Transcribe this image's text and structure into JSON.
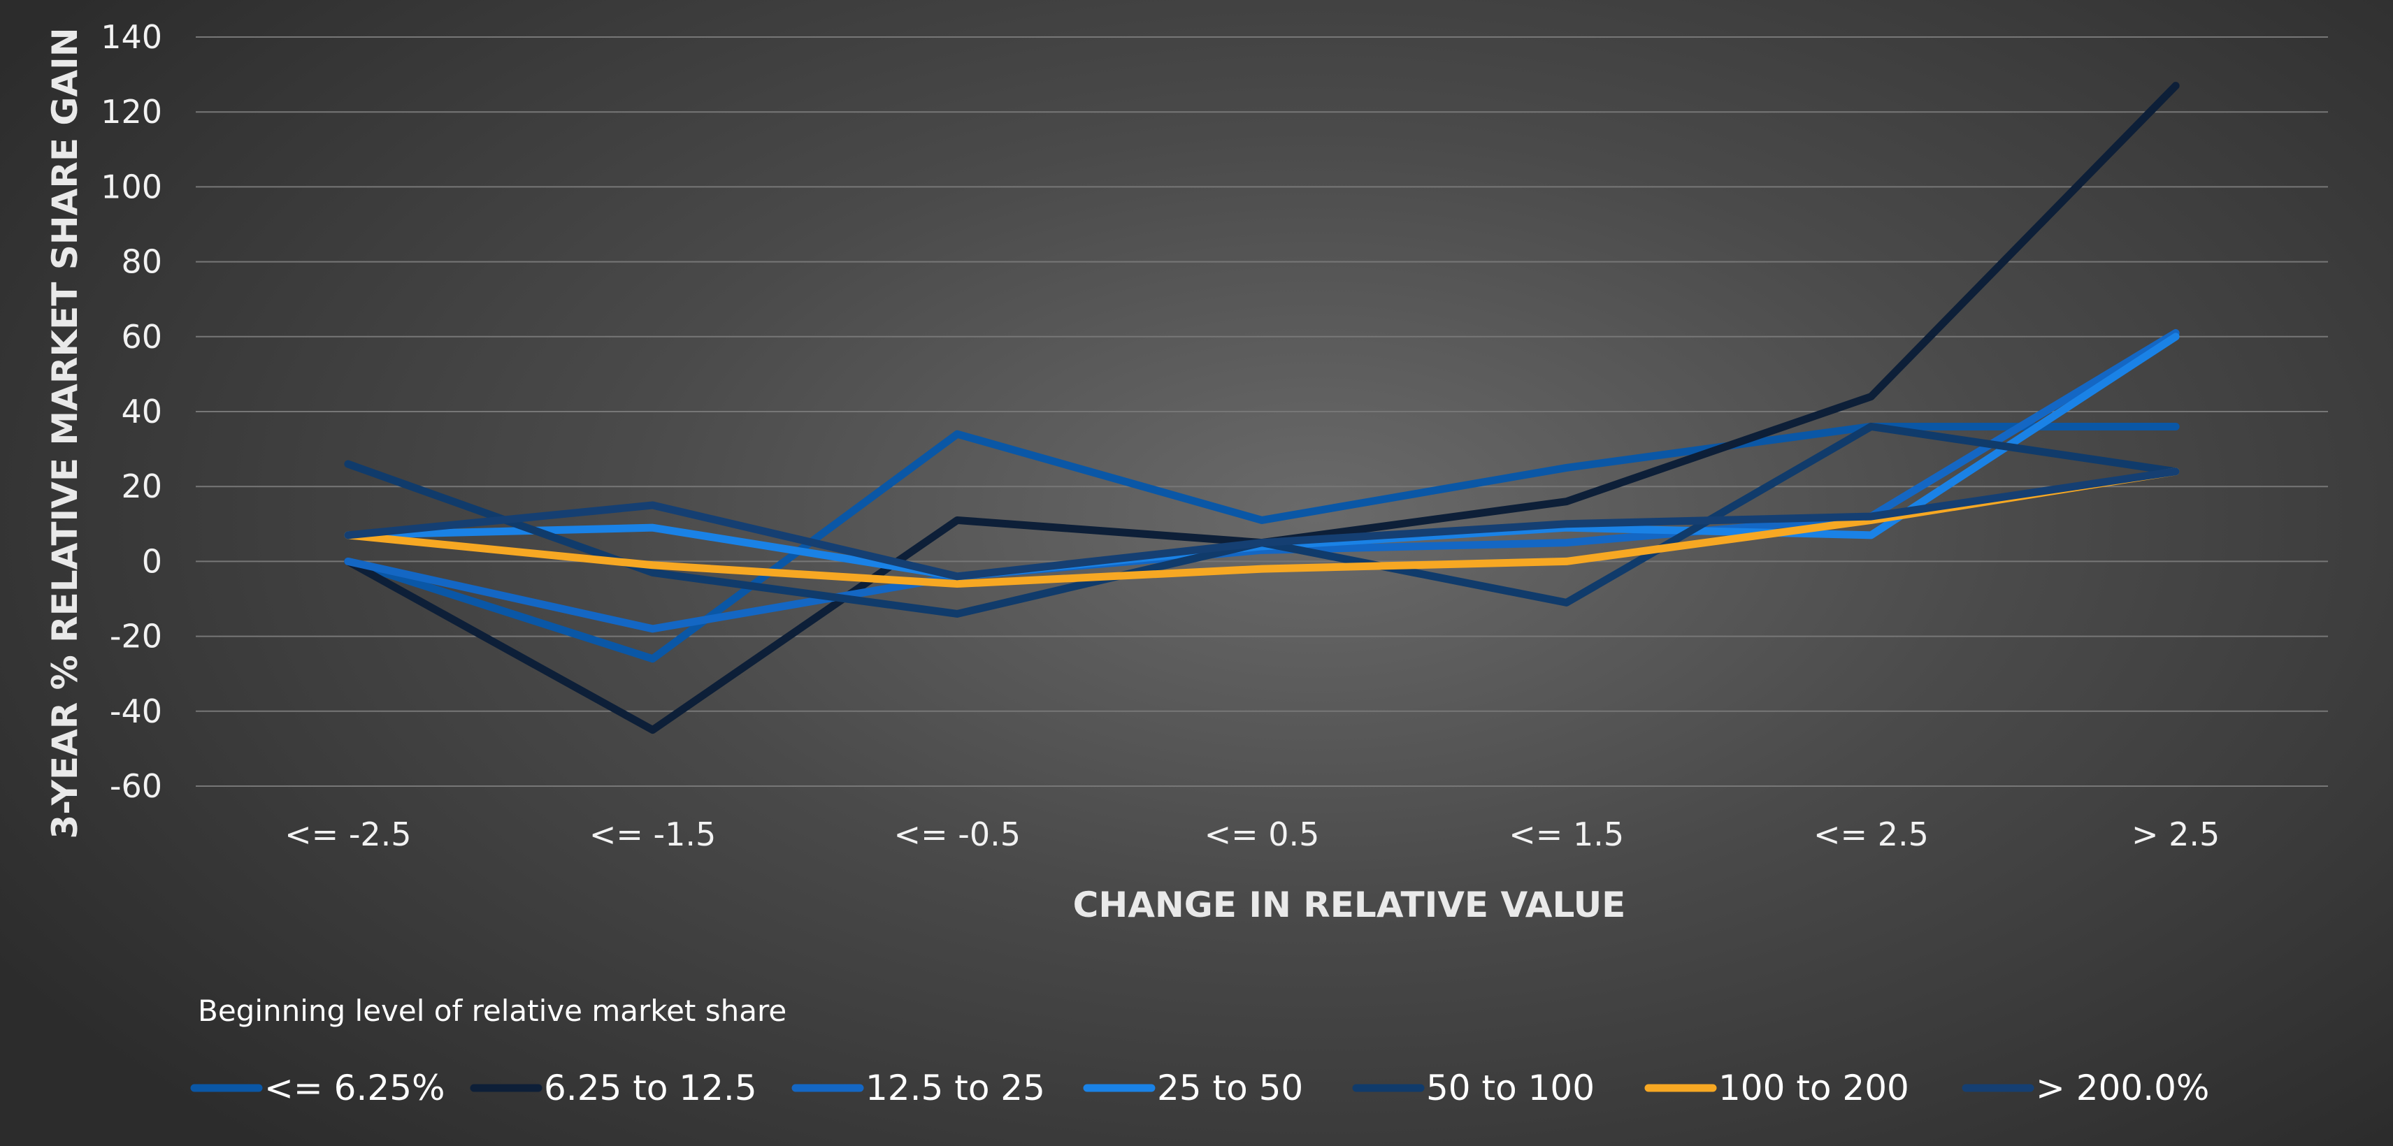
{
  "chart_data": {
    "type": "line",
    "categories": [
      "<= -2.5",
      "<= -1.5",
      "<= -0.5",
      "<= 0.5",
      "<= 1.5",
      "<= 2.5",
      "> 2.5"
    ],
    "xlabel": "CHANGE IN RELATIVE VALUE",
    "ylabel": "3-YEAR % RELATIVE MARKET SHARE GAIN",
    "ylim": [
      -60,
      140
    ],
    "yticks": [
      -60,
      -40,
      -20,
      0,
      20,
      40,
      60,
      80,
      100,
      120,
      140
    ],
    "grid": true,
    "legend_title": "Beginning level of relative market share",
    "legend_position": "bottom",
    "series": [
      {
        "name": "<= 6.25%",
        "color": "#0a57a6",
        "values": [
          0,
          -26,
          34,
          11,
          25,
          36,
          36
        ]
      },
      {
        "name": "6.25 to 12.5",
        "color": "#0d1f38",
        "values": [
          0,
          -45,
          11,
          5,
          16,
          44,
          127
        ]
      },
      {
        "name": "12.5 to 25",
        "color": "#1467c4",
        "values": [
          0,
          -18,
          -4,
          3,
          5,
          12,
          61
        ]
      },
      {
        "name": "25 to 50",
        "color": "#1a82e6",
        "values": [
          7,
          9,
          -4,
          4,
          9,
          7,
          60
        ]
      },
      {
        "name": "50 to 100",
        "color": "#103b6b",
        "values": [
          26,
          -3,
          -14,
          5,
          -11,
          36,
          24
        ]
      },
      {
        "name": "100 to 200",
        "color": "#f7a823",
        "values": [
          7,
          -1,
          -6,
          -2,
          0,
          11,
          24
        ]
      },
      {
        "name": "> 200.0%",
        "color": "#153f72",
        "values": [
          7,
          15,
          -4,
          5,
          10,
          12,
          24
        ]
      }
    ]
  }
}
